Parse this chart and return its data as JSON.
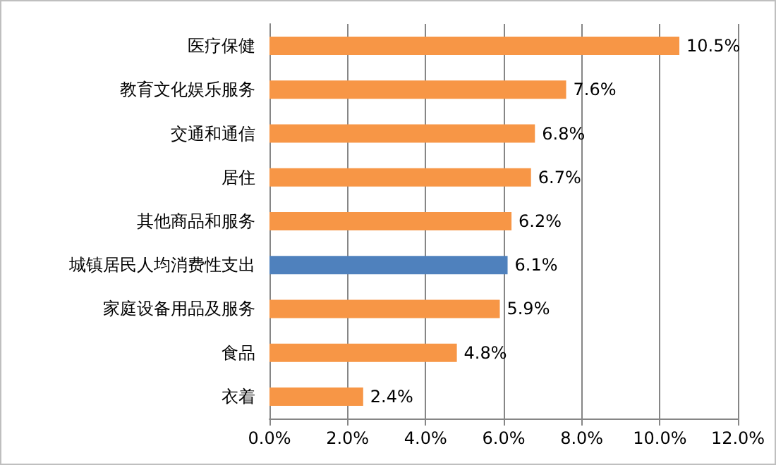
{
  "chart_data": {
    "type": "bar",
    "orientation": "horizontal",
    "categories": [
      "医疗保健",
      "教育文化娱乐服务",
      "交通和通信",
      "居住",
      "其他商品和服务",
      "城镇居民人均消费性支出",
      "家庭设备用品及服务",
      "食品",
      "衣着"
    ],
    "values": [
      10.5,
      7.6,
      6.8,
      6.7,
      6.2,
      6.1,
      5.9,
      4.8,
      2.4
    ],
    "colors": [
      "#f79646",
      "#f79646",
      "#f79646",
      "#f79646",
      "#f79646",
      "#4f81bd",
      "#f79646",
      "#f79646",
      "#f79646"
    ],
    "value_labels": [
      "10.5%",
      "7.6%",
      "6.8%",
      "6.7%",
      "6.2%",
      "6.1%",
      "5.9%",
      "4.8%",
      "2.4%"
    ],
    "xlim": [
      0,
      12
    ],
    "xticks": [
      {
        "value": 0,
        "label": "0.0%"
      },
      {
        "value": 2,
        "label": "2.0%"
      },
      {
        "value": 4,
        "label": "4.0%"
      },
      {
        "value": 6,
        "label": "6.0%"
      },
      {
        "value": 8,
        "label": "8.0%"
      },
      {
        "value": 10,
        "label": "10.0%"
      },
      {
        "value": 12,
        "label": "12.0%"
      }
    ],
    "grid": "x"
  }
}
